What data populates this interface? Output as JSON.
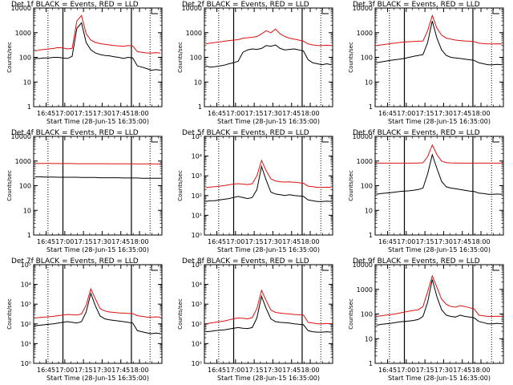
{
  "figure": {
    "start_time_label": "Start Time (28-Jun-15 16:35:00)",
    "ylabel": "Counts/sec",
    "colors": {
      "events": "#000000",
      "lld": "#dd1111",
      "axis": "#000000"
    }
  },
  "chart_data": [
    {
      "type": "line",
      "title": "Det 1f BLACK = Events, RED = LLD",
      "xlabel": "Start Time (28-Jun-15 16:35:00)",
      "ylabel": "Counts/sec",
      "ytick_style": "plain",
      "ylim": [
        1,
        10000
      ],
      "yticks": [
        "1",
        "10",
        "100",
        "1000",
        "10000"
      ],
      "xticks": [
        "16:45",
        "17:00",
        "17:15",
        "17:30",
        "17:45",
        "18:00"
      ],
      "series": [
        {
          "name": "Events",
          "values": [
            90,
            90,
            95,
            95,
            100,
            100,
            95,
            90,
            110,
            1500,
            2500,
            400,
            200,
            150,
            130,
            120,
            115,
            105,
            100,
            90,
            100,
            95,
            45,
            40,
            35,
            30,
            32,
            30
          ]
        },
        {
          "name": "LLD",
          "values": [
            180,
            200,
            210,
            220,
            230,
            250,
            240,
            220,
            230,
            3000,
            5000,
            900,
            500,
            400,
            360,
            340,
            320,
            300,
            290,
            280,
            300,
            290,
            170,
            160,
            150,
            150,
            155,
            150
          ]
        }
      ]
    },
    {
      "type": "line",
      "title": "Det 2f BLACK = Events, RED = LLD",
      "xlabel": "Start Time (28-Jun-15 16:35:00)",
      "ylabel": "Counts/sec",
      "ytick_style": "plain",
      "ylim": [
        1,
        10000
      ],
      "yticks": [
        "1",
        "10",
        "100",
        "1000",
        "10000"
      ],
      "xticks": [
        "16:45",
        "17:00",
        "17:15",
        "17:30",
        "17:45",
        "18:00"
      ],
      "series": [
        {
          "name": "Events",
          "values": [
            45,
            40,
            42,
            45,
            48,
            55,
            60,
            70,
            160,
            200,
            220,
            210,
            230,
            300,
            280,
            320,
            230,
            200,
            210,
            220,
            200,
            180,
            80,
            60,
            55,
            50,
            55,
            50
          ]
        },
        {
          "name": "LLD",
          "values": [
            350,
            380,
            400,
            420,
            450,
            480,
            500,
            520,
            600,
            620,
            650,
            700,
            900,
            1200,
            1000,
            1400,
            900,
            700,
            600,
            550,
            500,
            450,
            350,
            320,
            300,
            300,
            310,
            300
          ]
        }
      ]
    },
    {
      "type": "line",
      "title": "Det 3f BLACK = Events, RED = LLD",
      "xlabel": "Start Time (28-Jun-15 16:35:00)",
      "ylabel": "Counts/sec",
      "ytick_style": "plain",
      "ylim": [
        1,
        10000
      ],
      "yticks": [
        "1",
        "10",
        "100",
        "1000",
        "10000"
      ],
      "xticks": [
        "16:45",
        "17:00",
        "17:15",
        "17:30",
        "17:45",
        "18:00"
      ],
      "series": [
        {
          "name": "Events",
          "values": [
            60,
            65,
            70,
            75,
            80,
            85,
            90,
            100,
            110,
            120,
            130,
            400,
            3000,
            600,
            200,
            120,
            100,
            95,
            90,
            85,
            80,
            75,
            60,
            55,
            50,
            50,
            52,
            50
          ]
        },
        {
          "name": "LLD",
          "values": [
            300,
            320,
            340,
            360,
            380,
            400,
            420,
            430,
            440,
            450,
            460,
            1200,
            5000,
            1500,
            800,
            600,
            550,
            500,
            480,
            460,
            450,
            430,
            380,
            360,
            350,
            350,
            355,
            350
          ]
        }
      ]
    },
    {
      "type": "line",
      "title": "Det 4f BLACK = Events, RED = LLD",
      "xlabel": "Start Time (28-Jun-15 16:35:00)",
      "ylabel": "Counts/sec",
      "ytick_style": "plain",
      "ylim": [
        1,
        10000
      ],
      "yticks": [
        "1",
        "10",
        "100",
        "1000",
        "10000"
      ],
      "xticks": [
        "16:45",
        "17:00",
        "17:15",
        "17:30",
        "17:45",
        "18:00"
      ],
      "series": [
        {
          "name": "Events",
          "values": [
            230,
            230,
            225,
            225,
            225,
            220,
            220,
            220,
            220,
            220,
            215,
            215,
            215,
            215,
            210,
            210,
            210,
            210,
            210,
            205,
            205,
            205,
            205,
            200,
            200,
            200,
            200,
            200
          ]
        },
        {
          "name": "LLD",
          "values": [
            800,
            800,
            800,
            800,
            790,
            790,
            790,
            790,
            790,
            780,
            780,
            780,
            780,
            780,
            780,
            780,
            770,
            770,
            770,
            770,
            770,
            770,
            760,
            760,
            760,
            760,
            760,
            760
          ]
        }
      ]
    },
    {
      "type": "line",
      "title": "Det 5f BLACK = Events, RED = LLD",
      "xlabel": "Start Time (28-Jun-15 16:35:00)",
      "ylabel": "Counts/sec",
      "ytick_style": "exp",
      "ylim": [
        1,
        100000
      ],
      "yticks": [
        "10⁰",
        "10¹",
        "10²",
        "10³",
        "10⁴",
        "10⁵"
      ],
      "xticks": [
        "16:45",
        "17:00",
        "17:15",
        "17:30",
        "17:45",
        "18:00"
      ],
      "series": [
        {
          "name": "Events",
          "values": [
            50,
            55,
            55,
            60,
            65,
            70,
            80,
            90,
            80,
            70,
            80,
            200,
            3000,
            600,
            150,
            120,
            110,
            100,
            110,
            100,
            95,
            90,
            60,
            55,
            50,
            50,
            52,
            50
          ]
        },
        {
          "name": "LLD",
          "values": [
            250,
            270,
            280,
            300,
            320,
            350,
            380,
            400,
            380,
            360,
            400,
            1000,
            6000,
            1800,
            700,
            550,
            500,
            480,
            490,
            470,
            450,
            420,
            300,
            280,
            260,
            260,
            265,
            260
          ]
        }
      ]
    },
    {
      "type": "line",
      "title": "Det 6f BLACK = Events, RED = LLD",
      "xlabel": "Start Time (28-Jun-15 16:35:00)",
      "ylabel": "Counts/sec",
      "ytick_style": "plain",
      "ylim": [
        1,
        10000
      ],
      "yticks": [
        "1",
        "10",
        "100",
        "1000",
        "10000"
      ],
      "xticks": [
        "16:45",
        "17:00",
        "17:15",
        "17:30",
        "17:45",
        "18:00"
      ],
      "series": [
        {
          "name": "Events",
          "values": [
            45,
            48,
            50,
            52,
            55,
            58,
            60,
            62,
            65,
            70,
            80,
            300,
            1800,
            500,
            150,
            90,
            80,
            75,
            70,
            65,
            60,
            58,
            50,
            48,
            45,
            45,
            46,
            45
          ]
        },
        {
          "name": "LLD",
          "values": [
            820,
            820,
            820,
            820,
            820,
            820,
            820,
            820,
            820,
            830,
            850,
            1500,
            4500,
            1800,
            1000,
            860,
            840,
            830,
            820,
            820,
            820,
            820,
            820,
            820,
            820,
            820,
            820,
            820
          ]
        }
      ]
    },
    {
      "type": "line",
      "title": "Det 7f BLACK = Events, RED = LLD",
      "xlabel": "Start Time (28-Jun-15 16:35:00)",
      "ylabel": "Counts/sec",
      "ytick_style": "exp",
      "ylim": [
        1,
        100000
      ],
      "yticks": [
        "10⁰",
        "10¹",
        "10²",
        "10³",
        "10⁴",
        "10⁵"
      ],
      "xticks": [
        "16:45",
        "17:00",
        "17:15",
        "17:30",
        "17:45",
        "18:00"
      ],
      "series": [
        {
          "name": "Events",
          "values": [
            80,
            85,
            90,
            95,
            100,
            110,
            120,
            130,
            120,
            110,
            130,
            400,
            3500,
            800,
            250,
            180,
            160,
            150,
            140,
            130,
            120,
            110,
            45,
            40,
            35,
            32,
            34,
            32
          ]
        },
        {
          "name": "LLD",
          "values": [
            200,
            210,
            220,
            230,
            240,
            260,
            280,
            300,
            290,
            280,
            320,
            900,
            6000,
            1800,
            600,
            450,
            400,
            380,
            360,
            350,
            340,
            330,
            260,
            240,
            220,
            220,
            225,
            220
          ]
        }
      ]
    },
    {
      "type": "line",
      "title": "Det 8f BLACK = Events, RED = LLD",
      "xlabel": "Start Time (28-Jun-15 16:35:00)",
      "ylabel": "Counts/sec",
      "ytick_style": "exp",
      "ylim": [
        1,
        100000
      ],
      "yticks": [
        "10⁰",
        "10¹",
        "10²",
        "10³",
        "10⁴",
        "10⁵"
      ],
      "xticks": [
        "16:45",
        "17:00",
        "17:15",
        "17:30",
        "17:45",
        "18:00"
      ],
      "series": [
        {
          "name": "Events",
          "values": [
            40,
            42,
            45,
            48,
            50,
            55,
            60,
            65,
            60,
            58,
            65,
            200,
            2500,
            600,
            180,
            130,
            120,
            115,
            110,
            100,
            95,
            90,
            45,
            40,
            38,
            38,
            40,
            38
          ]
        },
        {
          "name": "LLD",
          "values": [
            100,
            110,
            120,
            130,
            140,
            160,
            180,
            200,
            190,
            180,
            210,
            600,
            5000,
            1500,
            500,
            380,
            350,
            330,
            320,
            300,
            290,
            280,
            120,
            110,
            100,
            100,
            105,
            100
          ]
        }
      ]
    },
    {
      "type": "line",
      "title": "Det 9f BLACK = Events, RED = LLD",
      "xlabel": "Start Time (28-Jun-15 16:35:00)",
      "ylabel": "Counts/sec",
      "ytick_style": "plain",
      "ylim": [
        1,
        10000
      ],
      "yticks": [
        "1",
        "10",
        "100",
        "1000",
        "10000"
      ],
      "xticks": [
        "16:45",
        "17:00",
        "17:15",
        "17:30",
        "17:45",
        "18:00"
      ],
      "series": [
        {
          "name": "Events",
          "values": [
            35,
            38,
            40,
            42,
            45,
            48,
            50,
            52,
            55,
            60,
            80,
            300,
            2500,
            500,
            150,
            90,
            80,
            75,
            90,
            80,
            75,
            70,
            50,
            45,
            40,
            40,
            42,
            40
          ]
        },
        {
          "name": "LLD",
          "values": [
            80,
            85,
            90,
            95,
            100,
            110,
            120,
            130,
            140,
            150,
            200,
            800,
            3500,
            1200,
            400,
            250,
            200,
            190,
            220,
            200,
            180,
            160,
            90,
            85,
            80,
            80,
            82,
            80
          ]
        }
      ]
    }
  ]
}
